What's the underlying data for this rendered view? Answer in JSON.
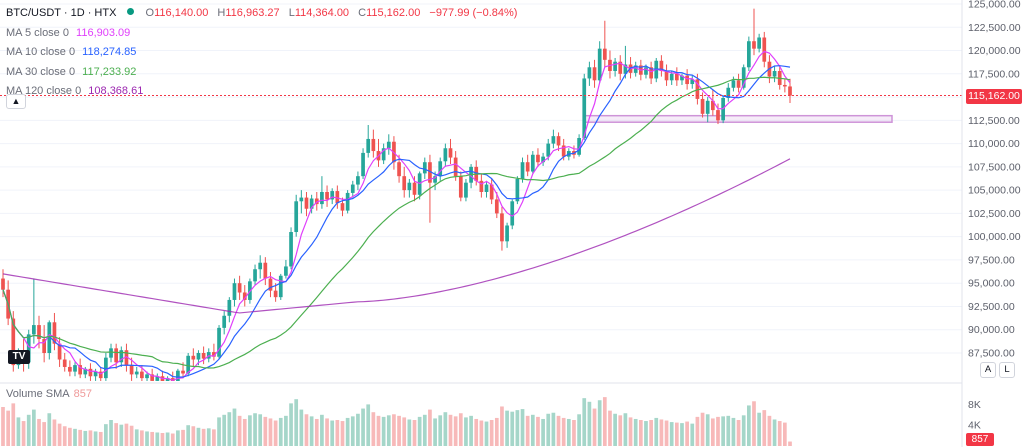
{
  "header": {
    "symbol": "BTC/USDT · 1D · HTX",
    "open_key": "O",
    "open": "116,140.00",
    "high_key": "H",
    "high": "116,963.27",
    "low_key": "L",
    "low": "114,364.00",
    "close_key": "C",
    "close": "115,162.00",
    "change": "−977.99 (−0.84%)"
  },
  "indicators": [
    {
      "label": "MA 5 close 0",
      "value": "116,903.09",
      "color": "#e040fb"
    },
    {
      "label": "MA 10 close 0",
      "value": "118,274.85",
      "color": "#2962ff"
    },
    {
      "label": "MA 30 close 0",
      "value": "117,233.92",
      "color": "#4caf50"
    },
    {
      "label": "MA 120 close 0",
      "value": "108,368.61",
      "color": "#9c27b0"
    }
  ],
  "volume": {
    "label": "Volume SMA",
    "value": "857"
  },
  "price_tag": "115,162.00",
  "volume_tag": "857",
  "scale_buttons": {
    "auto": "A",
    "log": "L"
  },
  "logo_text": "TV",
  "colors": {
    "up": "#26a69a",
    "down": "#ef5350",
    "vol_up": "#a5d6c9",
    "vol_down": "#f7b9b9",
    "zone": "#ce93d8"
  },
  "chart_data": {
    "type": "candlestick",
    "price_ticks": [
      "125,000.00",
      "122,500.00",
      "120,000.00",
      "117,500.00",
      "115,000.00",
      "112,500.00",
      "110,000.00",
      "107,500.00",
      "105,000.00",
      "102,500.00",
      "100,000.00",
      "97,500.00",
      "95,000.00",
      "92,500.00",
      "90,000.00",
      "87,500.00"
    ],
    "volume_ticks": [
      "8K",
      "4K"
    ],
    "ylim": [
      86000,
      125500
    ],
    "volume_ylim": [
      0,
      10000
    ],
    "current_price": 115162,
    "support_zone": [
      112300,
      113000
    ],
    "candles": [
      {
        "o": 95500,
        "h": 96500,
        "c": 94300,
        "l": 93500,
        "v": 7500
      },
      {
        "o": 94300,
        "h": 95300,
        "c": 91200,
        "l": 90500,
        "v": 6800
      },
      {
        "o": 91200,
        "h": 92000,
        "c": 86200,
        "l": 85500,
        "v": 8200
      },
      {
        "o": 86200,
        "h": 88000,
        "c": 87500,
        "l": 85800,
        "v": 5500
      },
      {
        "o": 87500,
        "h": 89000,
        "c": 86500,
        "l": 85500,
        "v": 4800
      },
      {
        "o": 86500,
        "h": 90000,
        "c": 89500,
        "l": 85800,
        "v": 6000
      },
      {
        "o": 89500,
        "h": 95500,
        "c": 90500,
        "l": 88500,
        "v": 7000
      },
      {
        "o": 90500,
        "h": 91500,
        "c": 89000,
        "l": 88000,
        "v": 5200
      },
      {
        "o": 89000,
        "h": 90500,
        "c": 87500,
        "l": 86500,
        "v": 4600
      },
      {
        "o": 87500,
        "h": 91000,
        "c": 90800,
        "l": 86800,
        "v": 6300
      },
      {
        "o": 90800,
        "h": 91800,
        "c": 88500,
        "l": 87800,
        "v": 5100
      },
      {
        "o": 88500,
        "h": 89200,
        "c": 86800,
        "l": 86000,
        "v": 4300
      },
      {
        "o": 86800,
        "h": 87500,
        "c": 86000,
        "l": 85500,
        "v": 3800
      },
      {
        "o": 86000,
        "h": 86700,
        "c": 85500,
        "l": 85000,
        "v": 3500
      },
      {
        "o": 85500,
        "h": 86500,
        "c": 86200,
        "l": 85000,
        "v": 3300
      },
      {
        "o": 86200,
        "h": 86900,
        "c": 85200,
        "l": 84800,
        "v": 3100
      },
      {
        "o": 85200,
        "h": 86000,
        "c": 85800,
        "l": 84800,
        "v": 2900
      },
      {
        "o": 85800,
        "h": 86400,
        "c": 85000,
        "l": 84500,
        "v": 3000
      },
      {
        "o": 85000,
        "h": 85800,
        "c": 85500,
        "l": 84500,
        "v": 2800
      },
      {
        "o": 85500,
        "h": 86000,
        "c": 84800,
        "l": 84200,
        "v": 2700
      },
      {
        "o": 84800,
        "h": 87500,
        "c": 87000,
        "l": 84500,
        "v": 4200
      },
      {
        "o": 87000,
        "h": 88500,
        "c": 88000,
        "l": 86500,
        "v": 5000
      },
      {
        "o": 88000,
        "h": 88500,
        "c": 86500,
        "l": 85800,
        "v": 4400
      },
      {
        "o": 86500,
        "h": 88200,
        "c": 87800,
        "l": 86000,
        "v": 4100
      },
      {
        "o": 87800,
        "h": 88500,
        "c": 86200,
        "l": 85500,
        "v": 4300
      },
      {
        "o": 86200,
        "h": 87000,
        "c": 85200,
        "l": 84500,
        "v": 3900
      },
      {
        "o": 85200,
        "h": 86000,
        "c": 85500,
        "l": 84800,
        "v": 3200
      },
      {
        "o": 85500,
        "h": 86200,
        "c": 84800,
        "l": 84200,
        "v": 3000
      },
      {
        "o": 84800,
        "h": 85500,
        "c": 85200,
        "l": 84200,
        "v": 2800
      },
      {
        "o": 85200,
        "h": 85800,
        "c": 84500,
        "l": 84000,
        "v": 2700
      },
      {
        "o": 84500,
        "h": 85300,
        "c": 85000,
        "l": 84000,
        "v": 2600
      },
      {
        "o": 85000,
        "h": 85600,
        "c": 84300,
        "l": 83800,
        "v": 2500
      },
      {
        "o": 84300,
        "h": 85000,
        "c": 84800,
        "l": 83800,
        "v": 2600
      },
      {
        "o": 84800,
        "h": 85500,
        "c": 84200,
        "l": 83700,
        "v": 2400
      },
      {
        "o": 84200,
        "h": 85800,
        "c": 85600,
        "l": 83900,
        "v": 3000
      },
      {
        "o": 85600,
        "h": 86500,
        "c": 85300,
        "l": 84800,
        "v": 3100
      },
      {
        "o": 85300,
        "h": 87500,
        "c": 87200,
        "l": 85000,
        "v": 4000
      },
      {
        "o": 87200,
        "h": 88000,
        "c": 86800,
        "l": 86000,
        "v": 3800
      },
      {
        "o": 86800,
        "h": 87800,
        "c": 87500,
        "l": 86200,
        "v": 3500
      },
      {
        "o": 87500,
        "h": 88200,
        "c": 86900,
        "l": 86300,
        "v": 3300
      },
      {
        "o": 86900,
        "h": 88000,
        "c": 87600,
        "l": 86500,
        "v": 3400
      },
      {
        "o": 87600,
        "h": 88500,
        "c": 87100,
        "l": 86700,
        "v": 3200
      },
      {
        "o": 87100,
        "h": 90500,
        "c": 90200,
        "l": 86900,
        "v": 5500
      },
      {
        "o": 90200,
        "h": 92000,
        "c": 91500,
        "l": 89500,
        "v": 6000
      },
      {
        "o": 91500,
        "h": 93500,
        "c": 93200,
        "l": 90800,
        "v": 6500
      },
      {
        "o": 93200,
        "h": 95500,
        "c": 95000,
        "l": 92500,
        "v": 7200
      },
      {
        "o": 95000,
        "h": 95800,
        "c": 94000,
        "l": 93200,
        "v": 5800
      },
      {
        "o": 94000,
        "h": 94800,
        "c": 93200,
        "l": 92500,
        "v": 5200
      },
      {
        "o": 93200,
        "h": 95500,
        "c": 95200,
        "l": 92800,
        "v": 5900
      },
      {
        "o": 95200,
        "h": 97000,
        "c": 96500,
        "l": 94800,
        "v": 6300
      },
      {
        "o": 96500,
        "h": 98000,
        "c": 97200,
        "l": 95500,
        "v": 6100
      },
      {
        "o": 97200,
        "h": 97800,
        "c": 95500,
        "l": 94800,
        "v": 5600
      },
      {
        "o": 95500,
        "h": 96200,
        "c": 94200,
        "l": 93500,
        "v": 5300
      },
      {
        "o": 94200,
        "h": 95000,
        "c": 93500,
        "l": 93000,
        "v": 4900
      },
      {
        "o": 93500,
        "h": 96000,
        "c": 95800,
        "l": 93200,
        "v": 5400
      },
      {
        "o": 95800,
        "h": 97500,
        "c": 96800,
        "l": 95500,
        "v": 5800
      },
      {
        "o": 96800,
        "h": 101000,
        "c": 100500,
        "l": 96500,
        "v": 8200
      },
      {
        "o": 100500,
        "h": 104500,
        "c": 103800,
        "l": 100000,
        "v": 9000
      },
      {
        "o": 103800,
        "h": 105000,
        "c": 104200,
        "l": 102500,
        "v": 7000
      },
      {
        "o": 104200,
        "h": 104800,
        "c": 103000,
        "l": 102200,
        "v": 6100
      },
      {
        "o": 103000,
        "h": 104500,
        "c": 104100,
        "l": 102500,
        "v": 5700
      },
      {
        "o": 104100,
        "h": 104800,
        "c": 103500,
        "l": 102800,
        "v": 5200
      },
      {
        "o": 103500,
        "h": 106500,
        "c": 104800,
        "l": 103000,
        "v": 6000
      },
      {
        "o": 104800,
        "h": 105500,
        "c": 104000,
        "l": 103200,
        "v": 5300
      },
      {
        "o": 104000,
        "h": 105200,
        "c": 104900,
        "l": 103500,
        "v": 4900
      },
      {
        "o": 104900,
        "h": 105500,
        "c": 103600,
        "l": 103000,
        "v": 5000
      },
      {
        "o": 103600,
        "h": 104200,
        "c": 102800,
        "l": 102200,
        "v": 4800
      },
      {
        "o": 102800,
        "h": 105000,
        "c": 104700,
        "l": 102500,
        "v": 5400
      },
      {
        "o": 104700,
        "h": 106000,
        "c": 105600,
        "l": 104200,
        "v": 5700
      },
      {
        "o": 105600,
        "h": 107000,
        "c": 106500,
        "l": 105000,
        "v": 6200
      },
      {
        "o": 106500,
        "h": 109500,
        "c": 109000,
        "l": 106200,
        "v": 7200
      },
      {
        "o": 109000,
        "h": 112000,
        "c": 110500,
        "l": 108500,
        "v": 8000
      },
      {
        "o": 110500,
        "h": 111500,
        "c": 109200,
        "l": 108500,
        "v": 6500
      },
      {
        "o": 109200,
        "h": 110500,
        "c": 108200,
        "l": 107500,
        "v": 5800
      },
      {
        "o": 108200,
        "h": 110000,
        "c": 109500,
        "l": 107800,
        "v": 5600
      },
      {
        "o": 109500,
        "h": 111000,
        "c": 110200,
        "l": 108800,
        "v": 5900
      },
      {
        "o": 110200,
        "h": 110800,
        "c": 108000,
        "l": 107200,
        "v": 6100
      },
      {
        "o": 108000,
        "h": 108800,
        "c": 106500,
        "l": 105800,
        "v": 5800
      },
      {
        "o": 106500,
        "h": 107500,
        "c": 105000,
        "l": 104200,
        "v": 5500
      },
      {
        "o": 105000,
        "h": 106200,
        "c": 105800,
        "l": 104200,
        "v": 5100
      },
      {
        "o": 105800,
        "h": 106500,
        "c": 104500,
        "l": 103800,
        "v": 5000
      },
      {
        "o": 104500,
        "h": 107000,
        "c": 106800,
        "l": 104000,
        "v": 5600
      },
      {
        "o": 106800,
        "h": 108500,
        "c": 108000,
        "l": 106200,
        "v": 6000
      },
      {
        "o": 108000,
        "h": 108800,
        "c": 105800,
        "l": 101500,
        "v": 7000
      },
      {
        "o": 105800,
        "h": 107000,
        "c": 106500,
        "l": 105000,
        "v": 5300
      },
      {
        "o": 106500,
        "h": 108500,
        "c": 108100,
        "l": 106000,
        "v": 5900
      },
      {
        "o": 108100,
        "h": 110000,
        "c": 109500,
        "l": 107500,
        "v": 6500
      },
      {
        "o": 109500,
        "h": 110500,
        "c": 108500,
        "l": 107800,
        "v": 6000
      },
      {
        "o": 108500,
        "h": 109200,
        "c": 106500,
        "l": 106000,
        "v": 5700
      },
      {
        "o": 106500,
        "h": 107000,
        "c": 104200,
        "l": 103800,
        "v": 6300
      },
      {
        "o": 104200,
        "h": 106200,
        "c": 105800,
        "l": 103800,
        "v": 5500
      },
      {
        "o": 105800,
        "h": 107800,
        "c": 107500,
        "l": 105200,
        "v": 5800
      },
      {
        "o": 107500,
        "h": 108200,
        "c": 106000,
        "l": 105500,
        "v": 5200
      },
      {
        "o": 106000,
        "h": 106800,
        "c": 104800,
        "l": 104200,
        "v": 4900
      },
      {
        "o": 104800,
        "h": 106000,
        "c": 105600,
        "l": 104200,
        "v": 4700
      },
      {
        "o": 105600,
        "h": 106200,
        "c": 104000,
        "l": 103500,
        "v": 5000
      },
      {
        "o": 104000,
        "h": 104800,
        "c": 102500,
        "l": 102000,
        "v": 5400
      },
      {
        "o": 102500,
        "h": 103200,
        "c": 99500,
        "l": 98500,
        "v": 7600
      },
      {
        "o": 99500,
        "h": 101500,
        "c": 101200,
        "l": 98800,
        "v": 6800
      },
      {
        "o": 101200,
        "h": 104000,
        "c": 103800,
        "l": 100800,
        "v": 6600
      },
      {
        "o": 103800,
        "h": 106500,
        "c": 106200,
        "l": 103500,
        "v": 6900
      },
      {
        "o": 106200,
        "h": 108500,
        "c": 108000,
        "l": 105800,
        "v": 7100
      },
      {
        "o": 108000,
        "h": 108800,
        "c": 107000,
        "l": 106500,
        "v": 5800
      },
      {
        "o": 107000,
        "h": 109200,
        "c": 108800,
        "l": 106800,
        "v": 6000
      },
      {
        "o": 108800,
        "h": 109500,
        "c": 108000,
        "l": 107500,
        "v": 5600
      },
      {
        "o": 108000,
        "h": 109000,
        "c": 108600,
        "l": 107600,
        "v": 5200
      },
      {
        "o": 108600,
        "h": 110500,
        "c": 110000,
        "l": 108200,
        "v": 6200
      },
      {
        "o": 110000,
        "h": 111500,
        "c": 110800,
        "l": 109500,
        "v": 6400
      },
      {
        "o": 110800,
        "h": 111200,
        "c": 109800,
        "l": 109200,
        "v": 5800
      },
      {
        "o": 109800,
        "h": 110500,
        "c": 108600,
        "l": 108200,
        "v": 5400
      },
      {
        "o": 108600,
        "h": 109500,
        "c": 109200,
        "l": 108200,
        "v": 5200
      },
      {
        "o": 109200,
        "h": 109800,
        "c": 108800,
        "l": 108400,
        "v": 5000
      },
      {
        "o": 108800,
        "h": 111000,
        "c": 110600,
        "l": 108600,
        "v": 6100
      },
      {
        "o": 110600,
        "h": 117500,
        "c": 117000,
        "l": 110400,
        "v": 9200
      },
      {
        "o": 117000,
        "h": 118800,
        "c": 118200,
        "l": 116200,
        "v": 8500
      },
      {
        "o": 118200,
        "h": 119000,
        "c": 116800,
        "l": 116000,
        "v": 7200
      },
      {
        "o": 116800,
        "h": 121000,
        "c": 120200,
        "l": 116500,
        "v": 8800
      },
      {
        "o": 120200,
        "h": 123200,
        "c": 119000,
        "l": 118200,
        "v": 9400
      },
      {
        "o": 119000,
        "h": 120000,
        "c": 117800,
        "l": 117000,
        "v": 6800
      },
      {
        "o": 117800,
        "h": 119200,
        "c": 118800,
        "l": 117200,
        "v": 6200
      },
      {
        "o": 118800,
        "h": 119500,
        "c": 117500,
        "l": 116800,
        "v": 5900
      },
      {
        "o": 117500,
        "h": 120500,
        "c": 118500,
        "l": 117000,
        "v": 6300
      },
      {
        "o": 118500,
        "h": 119300,
        "c": 117600,
        "l": 117000,
        "v": 5500
      },
      {
        "o": 117600,
        "h": 118800,
        "c": 118400,
        "l": 117200,
        "v": 5200
      },
      {
        "o": 118400,
        "h": 119000,
        "c": 117400,
        "l": 116800,
        "v": 5000
      },
      {
        "o": 117400,
        "h": 118500,
        "c": 118200,
        "l": 117000,
        "v": 4800
      },
      {
        "o": 118200,
        "h": 118800,
        "c": 117000,
        "l": 116400,
        "v": 5000
      },
      {
        "o": 117000,
        "h": 119200,
        "c": 118900,
        "l": 116600,
        "v": 5400
      },
      {
        "o": 118900,
        "h": 119500,
        "c": 117800,
        "l": 117200,
        "v": 5100
      },
      {
        "o": 117800,
        "h": 118500,
        "c": 116800,
        "l": 116200,
        "v": 4900
      },
      {
        "o": 116800,
        "h": 117800,
        "c": 117500,
        "l": 116300,
        "v": 4600
      },
      {
        "o": 117500,
        "h": 118200,
        "c": 116800,
        "l": 116200,
        "v": 4500
      },
      {
        "o": 116800,
        "h": 117500,
        "c": 117300,
        "l": 116300,
        "v": 4400
      },
      {
        "o": 117300,
        "h": 118000,
        "c": 116400,
        "l": 115800,
        "v": 4700
      },
      {
        "o": 116400,
        "h": 117300,
        "c": 116900,
        "l": 115900,
        "v": 4300
      },
      {
        "o": 116900,
        "h": 117500,
        "c": 114800,
        "l": 114200,
        "v": 5600
      },
      {
        "o": 114800,
        "h": 115500,
        "c": 113200,
        "l": 112800,
        "v": 6400
      },
      {
        "o": 113200,
        "h": 115000,
        "c": 114600,
        "l": 112300,
        "v": 6100
      },
      {
        "o": 114600,
        "h": 115800,
        "c": 113600,
        "l": 113000,
        "v": 5300
      },
      {
        "o": 113600,
        "h": 114300,
        "c": 112500,
        "l": 112100,
        "v": 5600
      },
      {
        "o": 112500,
        "h": 115200,
        "c": 114900,
        "l": 112200,
        "v": 5700
      },
      {
        "o": 114900,
        "h": 116500,
        "c": 116000,
        "l": 114500,
        "v": 5800
      },
      {
        "o": 116000,
        "h": 117200,
        "c": 116800,
        "l": 115600,
        "v": 5400
      },
      {
        "o": 116800,
        "h": 117500,
        "c": 116000,
        "l": 115500,
        "v": 5000
      },
      {
        "o": 116000,
        "h": 118500,
        "c": 118200,
        "l": 115800,
        "v": 5900
      },
      {
        "o": 118200,
        "h": 121500,
        "c": 121000,
        "l": 117800,
        "v": 7800
      },
      {
        "o": 121000,
        "h": 124500,
        "c": 120200,
        "l": 119500,
        "v": 8600
      },
      {
        "o": 120200,
        "h": 121800,
        "c": 121400,
        "l": 119800,
        "v": 6400
      },
      {
        "o": 121400,
        "h": 122000,
        "c": 118800,
        "l": 118200,
        "v": 6900
      },
      {
        "o": 118800,
        "h": 119500,
        "c": 117200,
        "l": 116500,
        "v": 5800
      },
      {
        "o": 117200,
        "h": 118300,
        "c": 117800,
        "l": 116600,
        "v": 5100
      },
      {
        "o": 117800,
        "h": 118400,
        "c": 116300,
        "l": 115800,
        "v": 4800
      },
      {
        "o": 116300,
        "h": 117000,
        "c": 116140,
        "l": 115500,
        "v": 4500
      },
      {
        "o": 116140,
        "h": 116963,
        "c": 115162,
        "l": 114364,
        "v": 857
      }
    ]
  }
}
